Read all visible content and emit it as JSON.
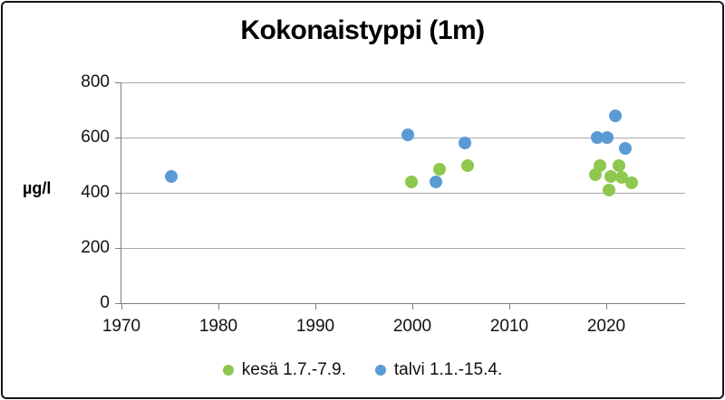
{
  "window": {
    "background": "#ffffff",
    "border_color": "#161616"
  },
  "chart_data": {
    "type": "scatter",
    "title": "Kokonaistyppi (1m)",
    "ylabel": "µg/l",
    "xlabel": "",
    "x_ticks": [
      1970,
      1980,
      1990,
      2000,
      2010,
      2020
    ],
    "y_ticks": [
      0,
      200,
      400,
      600,
      800
    ],
    "xlim": [
      1970,
      2028.1
    ],
    "ylim": [
      0,
      800
    ],
    "grid": "horizontal",
    "gridline_color": "#a8a8a8",
    "axis_color": "#7f7f7f",
    "legend_position": "bottom",
    "series": [
      {
        "name": "kesä 1.7.-7.9.",
        "color": "#8ec84e",
        "points": [
          {
            "x": 1999.9,
            "y": 440
          },
          {
            "x": 2002.8,
            "y": 485
          },
          {
            "x": 2005.7,
            "y": 500
          },
          {
            "x": 2018.9,
            "y": 465
          },
          {
            "x": 2019.3,
            "y": 500
          },
          {
            "x": 2020.3,
            "y": 410
          },
          {
            "x": 2020.5,
            "y": 460
          },
          {
            "x": 2021.3,
            "y": 500
          },
          {
            "x": 2021.6,
            "y": 455
          },
          {
            "x": 2022.6,
            "y": 435
          }
        ]
      },
      {
        "name": "talvi 1.1.-15.4.",
        "color": "#5b9bd5",
        "points": [
          {
            "x": 1975.1,
            "y": 460
          },
          {
            "x": 1999.5,
            "y": 610
          },
          {
            "x": 2002.4,
            "y": 440
          },
          {
            "x": 2005.4,
            "y": 580
          },
          {
            "x": 2019.1,
            "y": 600
          },
          {
            "x": 2020.1,
            "y": 600
          },
          {
            "x": 2020.9,
            "y": 680
          },
          {
            "x": 2022.0,
            "y": 560
          }
        ]
      }
    ]
  }
}
